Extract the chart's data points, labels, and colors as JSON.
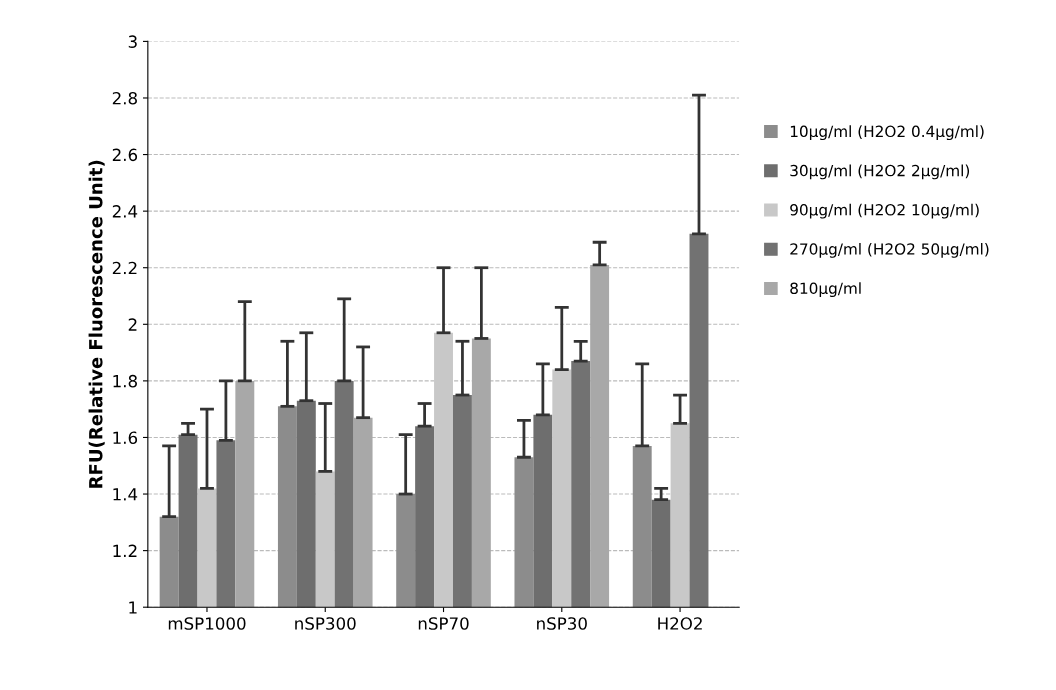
{
  "chart_data": {
    "type": "bar",
    "ylabel": "RFU(Relative Fluorescence Unit)",
    "categories": [
      "mSP1000",
      "nSP300",
      "nSP70",
      "nSP30",
      "H2O2"
    ],
    "series": [
      {
        "name": "10μg/ml (H2O2 0.4μg/ml)",
        "color": "#8c8c8c",
        "values": [
          1.32,
          1.71,
          1.4,
          1.53,
          1.57
        ],
        "errors": [
          [
            1.32,
            1.57
          ],
          [
            1.71,
            1.94
          ],
          [
            1.4,
            1.61
          ],
          [
            1.53,
            1.66
          ],
          [
            1.57,
            1.86
          ]
        ]
      },
      {
        "name": "30μg/ml (H2O2 2μg/ml)",
        "color": "#6e6e6e",
        "values": [
          1.61,
          1.73,
          1.64,
          1.68,
          1.38
        ],
        "errors": [
          [
            1.61,
            1.65
          ],
          [
            1.73,
            1.97
          ],
          [
            1.64,
            1.72
          ],
          [
            1.68,
            1.86
          ],
          [
            1.38,
            1.42
          ]
        ]
      },
      {
        "name": "90μg/ml (H2O2 10μg/ml)",
        "color": "#c8c8c8",
        "values": [
          1.42,
          1.48,
          1.97,
          1.84,
          1.65
        ],
        "errors": [
          [
            1.42,
            1.7
          ],
          [
            1.48,
            1.72
          ],
          [
            1.97,
            2.2
          ],
          [
            1.84,
            2.06
          ],
          [
            1.65,
            1.75
          ]
        ]
      },
      {
        "name": "270μg/ml (H2O2 50μg/ml)",
        "color": "#727272",
        "values": [
          1.59,
          1.8,
          1.75,
          1.87,
          2.32
        ],
        "errors": [
          [
            1.59,
            1.8
          ],
          [
            1.8,
            2.09
          ],
          [
            1.75,
            1.94
          ],
          [
            1.87,
            1.94
          ],
          [
            2.32,
            2.81
          ]
        ]
      },
      {
        "name": "810μg/ml",
        "color": "#a8a8a8",
        "values": [
          1.8,
          1.67,
          1.95,
          2.21,
          null
        ],
        "errors": [
          [
            1.8,
            2.08
          ],
          [
            1.67,
            1.92
          ],
          [
            1.95,
            2.2
          ],
          [
            2.21,
            2.29
          ],
          null
        ]
      }
    ],
    "ylim": [
      1,
      3
    ],
    "yticks": [
      1,
      1.2,
      1.4,
      1.6,
      1.8,
      2,
      2.2,
      2.4,
      2.6,
      2.8,
      3
    ],
    "grid": "y",
    "legend": "right"
  }
}
